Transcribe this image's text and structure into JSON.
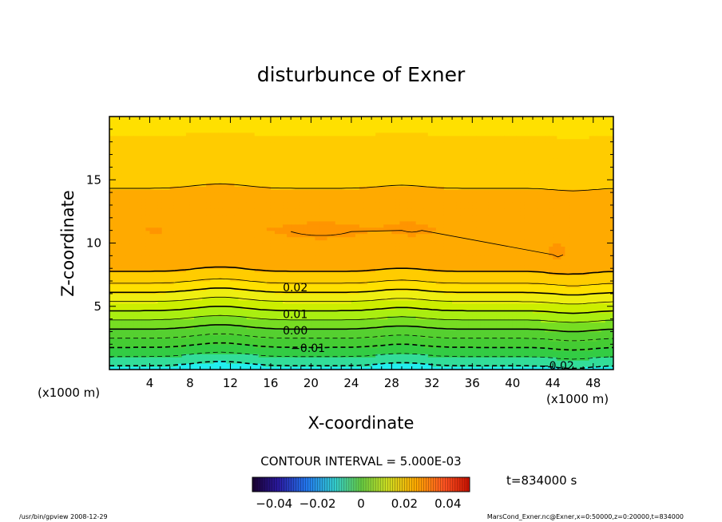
{
  "chart_data": {
    "type": "heatmap",
    "title": "disturbunce of Exner",
    "xlabel": "X-coordinate",
    "ylabel": "Z-coordinate",
    "x_unit": "(x1000 m)",
    "y_unit": "(x1000 m)",
    "xlim": [
      0,
      50
    ],
    "ylim": [
      0,
      20
    ],
    "x_ticks": [
      4,
      8,
      12,
      16,
      20,
      24,
      28,
      32,
      36,
      40,
      44,
      48
    ],
    "y_ticks": [
      5,
      10,
      15
    ],
    "contour_interval_text": "CONTOUR INTERVAL = 5.000E-03",
    "time_label": "t=834000 s",
    "colorbar": {
      "range": [
        -0.05,
        0.05
      ],
      "tick_values": [
        -0.04,
        -0.02,
        0,
        0.02,
        0.04
      ],
      "tick_labels": [
        "−0.04",
        "−0.02",
        "0",
        "0.02",
        "0.04"
      ]
    },
    "contour_labels": [
      {
        "text": "0.02",
        "x": 17.2,
        "z": 6.5
      },
      {
        "text": "0.01",
        "x": 17.2,
        "z": 4.4
      },
      {
        "text": "0.00",
        "x": 17.2,
        "z": 3.1
      },
      {
        "text": "−0.01",
        "x": 18.0,
        "z": 1.7
      },
      {
        "text": "−0.02",
        "x": 42.7,
        "z": 0.3
      }
    ],
    "contour_levels": [
      -0.02,
      -0.015,
      -0.01,
      -0.005,
      0.0,
      0.005,
      0.01,
      0.015,
      0.02,
      0.025,
      0.03,
      0.035
    ],
    "colors": {
      "cyan": "#22eeee",
      "green": "#33cc44",
      "lightgreen": "#88e033",
      "yellow": "#eeee11",
      "gold": "#ffcc00",
      "orange": "#ffaa00",
      "deeporange": "#ff8c00",
      "red": "#ff7a00"
    }
  },
  "footer": {
    "left": "/usr/bin/gpview   2008-12-29",
    "right": "MarsCond_Exner.nc@Exner,x=0:50000,z=0:20000,t=834000"
  }
}
